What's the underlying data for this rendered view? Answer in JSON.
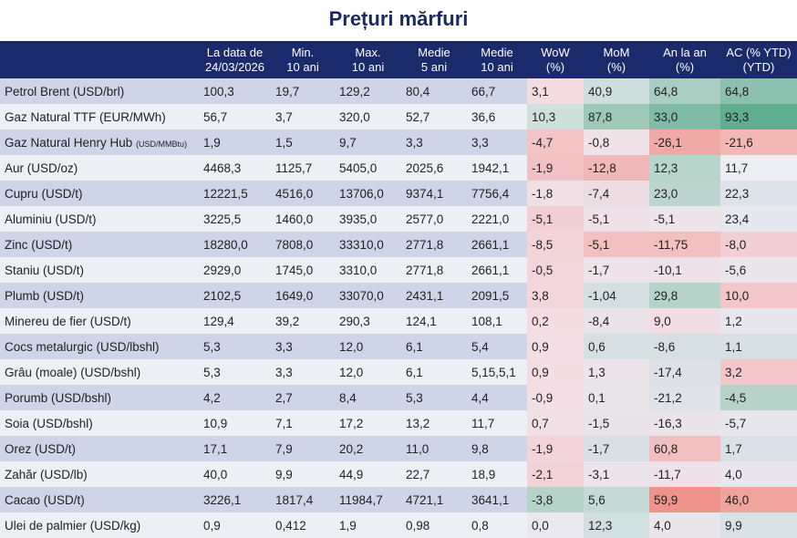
{
  "title": "Prețuri mărfuri",
  "headers": [
    {
      "l1": "",
      "l2": ""
    },
    {
      "l1": "La data de",
      "l2": "24/03/2026"
    },
    {
      "l1": "Min.",
      "l2": "10 ani"
    },
    {
      "l1": "Max.",
      "l2": "10 ani"
    },
    {
      "l1": "Medie",
      "l2": "5 ani"
    },
    {
      "l1": "Medie",
      "l2": "10 ani"
    },
    {
      "l1": "WoW",
      "l2": "(%)"
    },
    {
      "l1": "MoM",
      "l2": "(%)"
    },
    {
      "l1": "An la an",
      "l2": "(%)"
    },
    {
      "l1": "AC (% YTD)",
      "l2": "(YTD)"
    }
  ],
  "rows": [
    {
      "name": "Petrol Brent (USD/brl)",
      "unit_small": "",
      "values": [
        "100,3",
        "19,7",
        "129,2",
        "80,4",
        "66,7",
        "3,1",
        "40,9",
        "64,8",
        "64,8"
      ],
      "colors": [
        "#f3dde2",
        "#cfe0dc",
        "#a9cdc1",
        "#8cc1b0"
      ]
    },
    {
      "name": "Gaz Natural TTF (EUR/MWh)",
      "unit_small": "",
      "values": [
        "56,7",
        "3,7",
        "320,0",
        "52,7",
        "36,6",
        "10,3",
        "87,8",
        "33,0",
        "93,3"
      ],
      "colors": [
        "#cfe0dc",
        "#9dc9b9",
        "#7fbba6",
        "#5fae92"
      ]
    },
    {
      "name": "Gaz Natural Henry Hub ",
      "unit_small": "(USD/MMBtu)",
      "values": [
        "1,9",
        "1,5",
        "9,7",
        "3,3",
        "3,3",
        "-4,7",
        "-0,8",
        "-26,1",
        "-21,6"
      ],
      "colors": [
        "#f2c4c4",
        "#f0e3e8",
        "#efaaa8",
        "#f3b7b5"
      ]
    },
    {
      "name": "Aur (USD/oz)",
      "unit_small": "",
      "values": [
        "4468,3",
        "1125,7",
        "5405,0",
        "2025,6",
        "1942,1",
        "-1,9",
        "-12,8",
        "12,3",
        "11,7"
      ],
      "colors": [
        "#f2c1c4",
        "#f0b8bb",
        "#b7d5cb",
        "#eceef3"
      ]
    },
    {
      "name": "Cupru (USD/t)",
      "unit_small": "",
      "values": [
        "12221,5",
        "4516,0",
        "13706,0",
        "9374,1",
        "7756,4",
        "-1,8",
        "-7,4",
        "23,0",
        "22,3"
      ],
      "colors": [
        "#f0dfe4",
        "#ecdde3",
        "#bcd6cf",
        "#dde3ea"
      ]
    },
    {
      "name": "Aluminiu (USD/t)",
      "unit_small": "",
      "values": [
        "3225,5",
        "1460,0",
        "3935,0",
        "2577,0",
        "2221,0",
        "-5,1",
        "-5,1",
        "-5,1",
        "23,4"
      ],
      "colors": [
        "#f2cfd5",
        "#eee2e8",
        "#ece6ec",
        "#e7e8ef"
      ]
    },
    {
      "name": "Zinc (USD/t)",
      "unit_small": "",
      "values": [
        "18280,0",
        "7808,0",
        "33310,0",
        "2771,8",
        "2661,1",
        "-8,5",
        "-5,1",
        "-11,75",
        "-8,0"
      ],
      "colors": [
        "#f2d3d8",
        "#f2c0c0",
        "#f2c0c0",
        "#f1cfd2"
      ]
    },
    {
      "name": "Staniu (USD/t)",
      "unit_small": "",
      "values": [
        "2929,0",
        "1745,0",
        "3310,0",
        "2771,8",
        "2661,1",
        "-0,5",
        "-1,7",
        "-10,1",
        "-5,6"
      ],
      "colors": [
        "#f3d6dc",
        "#ede3e9",
        "#eee2e8",
        "#ebe6ec"
      ]
    },
    {
      "name": "Plumb (USD/t)",
      "unit_small": "",
      "values": [
        "2102,5",
        "1649,0",
        "33070,0",
        "2431,1",
        "2091,5",
        "3,8",
        "-1,04",
        "29,8",
        "10,0"
      ],
      "colors": [
        "#f3d6dc",
        "#d3dfe1",
        "#b5d3c9",
        "#f2c7c9"
      ]
    },
    {
      "name": "Minereu de fier (USD/t)",
      "unit_small": "",
      "values": [
        "129,4",
        "39,2",
        "290,3",
        "124,1",
        "108,1",
        "0,2",
        "-8,4",
        "9,0",
        "1,2"
      ],
      "colors": [
        "#f3dde2",
        "#eae3e9",
        "#f1dde3",
        "#e8e6ee"
      ]
    },
    {
      "name": "Cocs metalurgic (USD/lbshl)",
      "unit_small": "",
      "values": [
        "5,3",
        "3,3",
        "12,0",
        "6,1",
        "5,4",
        "0,9",
        "0,6",
        "-8,6",
        "1,1"
      ],
      "colors": [
        "#f1dfe5",
        "#d6e0e3",
        "#d6e0e3",
        "#d6e0e3"
      ]
    },
    {
      "name": "Grâu (moale) (USD/bshl)",
      "unit_small": "",
      "values": [
        "5,3",
        "3,3",
        "12,0",
        "6,1",
        "5,15,5,1",
        "0,9",
        "1,3",
        "-17,4",
        "3,2"
      ],
      "colors": [
        "#f2dde3",
        "#ece4ea",
        "#dde1e7",
        "#f1c7c9"
      ]
    },
    {
      "name": "Porumb (USD/bshl)",
      "unit_small": "",
      "values": [
        "4,2",
        "2,7",
        "8,4",
        "5,3",
        "4,4",
        "-0,9",
        "0,1",
        "-21,2",
        "-4,5"
      ],
      "colors": [
        "#f1dfe5",
        "#e9e5eb",
        "#dfe3e9",
        "#b7d3c9"
      ]
    },
    {
      "name": "Soia (USD/bshl)",
      "unit_small": "",
      "values": [
        "10,9",
        "7,1",
        "17,2",
        "13,2",
        "11,7",
        "0,7",
        "-1,5",
        "-16,3",
        "-5,7"
      ],
      "colors": [
        "#f1e1e7",
        "#e8e4ea",
        "#eae3e9",
        "#e6e6ec"
      ]
    },
    {
      "name": "Orez (USD/t)",
      "unit_small": "",
      "values": [
        "17,1",
        "7,9",
        "20,2",
        "11,0",
        "9,8",
        "-1,9",
        "-1,7",
        "60,8",
        "1,7"
      ],
      "colors": [
        "#f1d3d9",
        "#d8e0e5",
        "#f0c0c1",
        "#dae0e8"
      ]
    },
    {
      "name": "Zahăr (USD/lb)",
      "unit_small": "",
      "values": [
        "40,0",
        "9,9",
        "44,9",
        "22,7",
        "18,9",
        "-2,1",
        "-3,1",
        "-11,7",
        "4,0"
      ],
      "colors": [
        "#f0d2d7",
        "#ebe4ea",
        "#eee2e8",
        "#e9e7ed"
      ]
    },
    {
      "name": "Cacao (USD/t)",
      "unit_small": "",
      "values": [
        "3226,1",
        "1817,4",
        "11984,7",
        "4721,1",
        "3641,1",
        "-3,8",
        "5,6",
        "59,9",
        "46,0"
      ],
      "colors": [
        "#b5d3c9",
        "#c5dad4",
        "#ee928a",
        "#f0a49d"
      ]
    },
    {
      "name": "Ulei de palmier (USD/kg)",
      "unit_small": "",
      "values": [
        "0,9",
        "0,412",
        "1,9",
        "0,98",
        "0,8",
        "0,0",
        "12,3",
        "4,0",
        "9,9"
      ],
      "colors": [
        "#e9e8ee",
        "#d2dfe1",
        "#ebe6ec",
        "#d8e1e5"
      ]
    }
  ]
}
